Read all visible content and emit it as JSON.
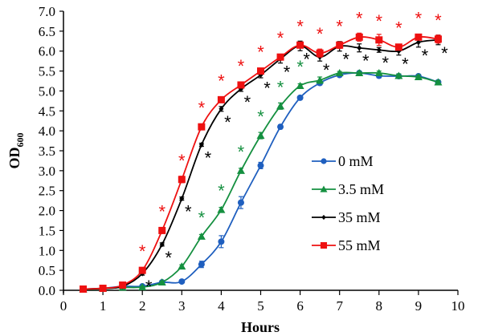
{
  "chart_data": {
    "type": "line",
    "title": "",
    "xlabel": "Hours",
    "ylabel": "OD",
    "ylabel_subscript": "600",
    "xlim": [
      0,
      10
    ],
    "ylim": [
      0,
      7
    ],
    "x_ticks": [
      "0",
      "1",
      "2",
      "3",
      "4",
      "5",
      "6",
      "7",
      "8",
      "9",
      "10"
    ],
    "y_ticks": [
      "0.0",
      "0.5",
      "1.0",
      "1.5",
      "2.0",
      "2.5",
      "3.0",
      "3.5",
      "4.0",
      "4.5",
      "5.0",
      "5.5",
      "6.0",
      "6.5",
      "7.0"
    ],
    "grid": false,
    "legend_position": "center-right",
    "x": [
      0.5,
      1,
      1.5,
      2,
      2.5,
      3,
      3.5,
      4,
      4.5,
      5,
      5.5,
      6,
      6.5,
      7,
      7.5,
      8,
      8.5,
      9,
      9.5
    ],
    "series": [
      {
        "name": "0 mM",
        "color": "#1f5fbf",
        "marker": "circle",
        "values": [
          0.03,
          0.05,
          0.1,
          0.1,
          0.2,
          0.22,
          0.65,
          1.22,
          2.2,
          3.13,
          4.1,
          4.83,
          5.2,
          5.4,
          5.45,
          5.38,
          5.37,
          5.37,
          5.22
        ],
        "error": [
          0.02,
          0.02,
          0.02,
          0.02,
          0.03,
          0.04,
          0.08,
          0.15,
          0.15,
          0.08,
          0.05,
          0.04,
          0.05,
          0.04,
          0.04,
          0.05,
          0.04,
          0.04,
          0.04
        ],
        "significant_at": []
      },
      {
        "name": "3.5 mM",
        "color": "#159040",
        "marker": "triangle",
        "values": [
          0.02,
          0.04,
          0.07,
          0.08,
          0.2,
          0.6,
          1.35,
          2.02,
          3.0,
          3.88,
          4.62,
          5.13,
          5.27,
          5.45,
          5.45,
          5.45,
          5.38,
          5.35,
          5.22
        ],
        "error": [
          0.02,
          0.02,
          0.02,
          0.02,
          0.03,
          0.04,
          0.05,
          0.06,
          0.06,
          0.08,
          0.08,
          0.05,
          0.08,
          0.04,
          0.04,
          0.05,
          0.05,
          0.05,
          0.04
        ],
        "significant_at": [
          3.5,
          4,
          4.5,
          5,
          5.5,
          6
        ]
      },
      {
        "name": "35 mM",
        "color": "#000000",
        "marker": "diamond",
        "values": [
          0.03,
          0.05,
          0.1,
          0.42,
          1.15,
          2.3,
          3.65,
          4.55,
          5.05,
          5.4,
          5.8,
          6.13,
          5.85,
          6.12,
          6.08,
          6.03,
          6.0,
          6.22,
          6.28
        ],
        "error": [
          0.02,
          0.02,
          0.02,
          0.04,
          0.04,
          0.04,
          0.04,
          0.06,
          0.06,
          0.07,
          0.1,
          0.12,
          0.1,
          0.12,
          0.1,
          0.06,
          0.1,
          0.12,
          0.12
        ],
        "significant_at": [
          2,
          2.5,
          3,
          3.5,
          4,
          4.5,
          5,
          5.5,
          6,
          6.5,
          7,
          7.5,
          8,
          8.5,
          9,
          9.5
        ]
      },
      {
        "name": "55 mM",
        "color": "#ee1111",
        "marker": "square",
        "values": [
          0.03,
          0.05,
          0.13,
          0.5,
          1.5,
          2.78,
          4.1,
          4.78,
          5.15,
          5.5,
          5.85,
          6.15,
          5.95,
          6.15,
          6.35,
          6.28,
          6.1,
          6.35,
          6.3
        ],
        "error": [
          0.02,
          0.02,
          0.03,
          0.05,
          0.06,
          0.08,
          0.07,
          0.06,
          0.05,
          0.05,
          0.05,
          0.06,
          0.1,
          0.08,
          0.1,
          0.14,
          0.06,
          0.05,
          0.1
        ],
        "significant_at": [
          2,
          2.5,
          3,
          3.5,
          4,
          4.5,
          5,
          5.5,
          6,
          6.5,
          7,
          7.5,
          8,
          8.5,
          9,
          9.5
        ]
      }
    ],
    "annotations": {
      "significance_symbol": "*"
    }
  }
}
